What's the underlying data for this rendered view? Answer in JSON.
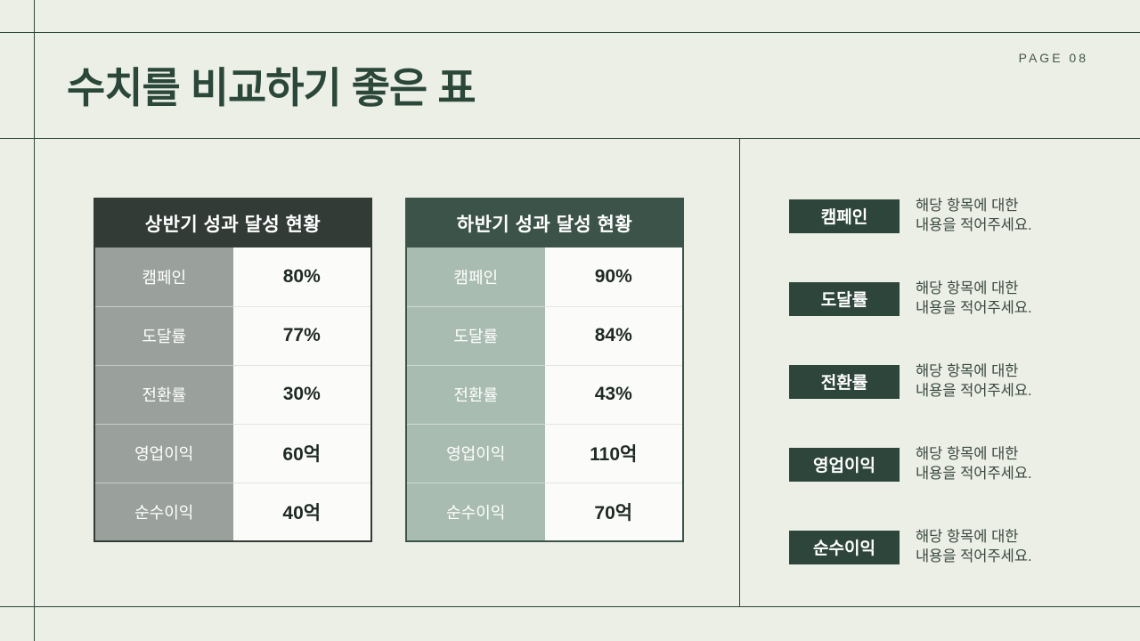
{
  "page": {
    "title": "수치를 비교하기 좋은 표",
    "page_label": "PAGE 08"
  },
  "tables": [
    {
      "title": "상반기 성과 달성 현황",
      "rows": [
        {
          "label": "캠페인",
          "value": "80%"
        },
        {
          "label": "도달률",
          "value": "77%"
        },
        {
          "label": "전환률",
          "value": "30%"
        },
        {
          "label": "영업이익",
          "value": "60억"
        },
        {
          "label": "순수이익",
          "value": "40억"
        }
      ]
    },
    {
      "title": "하반기 성과 달성 현황",
      "rows": [
        {
          "label": "캠페인",
          "value": "90%"
        },
        {
          "label": "도달률",
          "value": "84%"
        },
        {
          "label": "전환률",
          "value": "43%"
        },
        {
          "label": "영업이익",
          "value": "110억"
        },
        {
          "label": "순수이익",
          "value": "70억"
        }
      ]
    }
  ],
  "legend": {
    "items": [
      {
        "label": "캠페인",
        "line1": "해당 항목에 대한",
        "line2": "내용을 적어주세요."
      },
      {
        "label": "도달률",
        "line1": "해당 항목에 대한",
        "line2": "내용을 적어주세요."
      },
      {
        "label": "전환률",
        "line1": "해당 항목에 대한",
        "line2": "내용을 적어주세요."
      },
      {
        "label": "영업이익",
        "line1": "해당 항목에 대한",
        "line2": "내용을 적어주세요."
      },
      {
        "label": "순수이익",
        "line1": "해당 항목에 대한",
        "line2": "내용을 적어주세요."
      }
    ]
  },
  "colors": {
    "background": "#ecefe6",
    "frame_line": "#2b473a",
    "title_text": "#2b473a",
    "table1_header_bg": "#323b36",
    "table1_label_bg": "#9aa19c",
    "table2_header_bg": "#3c5349",
    "table2_label_bg": "#a9bcb1",
    "value_cell_bg": "#fbfcf9",
    "badge_bg": "#2d453a"
  }
}
